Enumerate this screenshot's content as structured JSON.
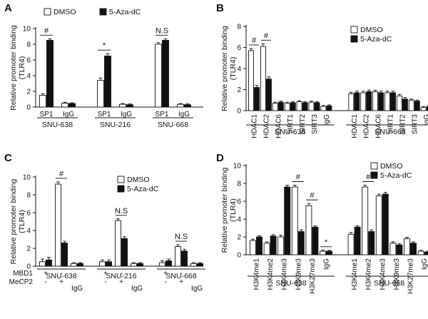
{
  "colors": {
    "dmso": "#ffffff",
    "aza": "#111111",
    "axis": "#111111"
  },
  "chart_data": [
    {
      "panel": "A",
      "type": "bar",
      "ylabel": "Relative promoter binding (TLR4)",
      "ylim": [
        0,
        10
      ],
      "yticks": [
        0,
        2,
        4,
        6,
        8,
        10
      ],
      "legend": [
        "DMSO",
        "5-Aza-dC"
      ],
      "categories": [
        "SP1",
        "IgG",
        "SP1",
        "IgG",
        "SP1",
        "IgG"
      ],
      "groups": [
        {
          "label": "SNU-638",
          "span": [
            0,
            1
          ]
        },
        {
          "label": "SNU-216",
          "span": [
            2,
            3
          ]
        },
        {
          "label": "SNU-668",
          "span": [
            4,
            5
          ]
        }
      ],
      "series": [
        {
          "name": "DMSO",
          "values": [
            1.5,
            0.5,
            3.4,
            0.35,
            8.0,
            0.35
          ]
        },
        {
          "name": "5-Aza-dC",
          "values": [
            8.5,
            0.45,
            6.5,
            0.3,
            8.5,
            0.3
          ]
        }
      ],
      "errors": [
        [
          0.2,
          0.1,
          0.3,
          0.1,
          0.2,
          0.1
        ],
        [
          0.2,
          0.1,
          0.3,
          0.1,
          0.2,
          0.1
        ]
      ],
      "annotations": [
        {
          "text": "#",
          "span": [
            0,
            0
          ]
        },
        {
          "text": "*",
          "span": [
            2,
            2
          ]
        },
        {
          "text": "N.S",
          "span": [
            4,
            4
          ]
        }
      ]
    },
    {
      "panel": "B",
      "type": "bar",
      "ylabel": "Relative promoter binding (TLR4)",
      "ylim": [
        0,
        8
      ],
      "yticks": [
        0,
        2,
        4,
        6,
        8
      ],
      "legend": [
        "DMSO",
        "5-Aza-dC"
      ],
      "categories": [
        "HDAC1",
        "HDAC2",
        "HDAC6",
        "SIRT1",
        "SIRT2",
        "SIRT3",
        "IgG",
        "HDAC1",
        "HDAC2",
        "HDAC6",
        "SIRT1",
        "SIRT2",
        "SIRT3",
        "IgG"
      ],
      "groups": [
        {
          "label": "SNU-638",
          "span": [
            0,
            6
          ]
        },
        {
          "label": "SNU-668",
          "span": [
            7,
            13
          ]
        }
      ],
      "series": [
        {
          "name": "DMSO",
          "values": [
            5.7,
            6.1,
            0.7,
            0.7,
            0.85,
            0.8,
            0.4,
            1.6,
            1.7,
            1.8,
            1.7,
            1.4,
            1.0,
            0.3
          ]
        },
        {
          "name": "5-Aza-dC",
          "values": [
            2.2,
            3.0,
            0.8,
            0.75,
            0.75,
            0.75,
            0.45,
            1.7,
            1.8,
            1.7,
            1.7,
            1.1,
            0.9,
            0.4
          ]
        }
      ],
      "errors": [
        [
          0.2,
          0.25,
          0.1,
          0.1,
          0.1,
          0.1,
          0.1,
          0.15,
          0.15,
          0.15,
          0.15,
          0.15,
          0.1,
          0.1
        ],
        [
          0.2,
          0.2,
          0.1,
          0.1,
          0.1,
          0.1,
          0.1,
          0.15,
          0.15,
          0.15,
          0.15,
          0.15,
          0.1,
          0.1
        ]
      ],
      "annotations": [
        {
          "text": "#",
          "span": [
            0,
            0
          ]
        },
        {
          "text": "#",
          "span": [
            1,
            1
          ]
        }
      ]
    },
    {
      "panel": "C",
      "type": "bar",
      "ylabel": "Relative promoter binding (TLR4)",
      "ylim": [
        0,
        10
      ],
      "yticks": [
        0,
        2,
        4,
        6,
        8,
        10
      ],
      "legend": [
        "DMSO",
        "5-Aza-dC"
      ],
      "row_labels": [
        "MBD1",
        "MeCP2"
      ],
      "signs": [
        [
          "+",
          "-"
        ],
        [
          "-",
          "+"
        ],
        [
          "+",
          "-"
        ],
        [
          "-",
          "+"
        ],
        [
          "+",
          "-"
        ],
        [
          "-",
          "+"
        ]
      ],
      "categories": [
        "",
        "",
        "IgG",
        "",
        "",
        "IgG",
        "",
        "",
        "IgG"
      ],
      "groups": [
        {
          "label": "SNU-638",
          "span": [
            0,
            2
          ]
        },
        {
          "label": "SNU-216",
          "span": [
            3,
            5
          ]
        },
        {
          "label": "SNU-668",
          "span": [
            6,
            8
          ]
        }
      ],
      "series": [
        {
          "name": "DMSO",
          "values": [
            0.5,
            9.2,
            0.3,
            0.5,
            5.1,
            0.3,
            0.4,
            2.2,
            0.3
          ]
        },
        {
          "name": "5-Aza-dC",
          "values": [
            0.7,
            2.6,
            0.3,
            0.5,
            3.1,
            0.3,
            0.6,
            1.7,
            0.3
          ]
        }
      ],
      "errors": [
        [
          0.3,
          0.25,
          0.1,
          0.2,
          0.2,
          0.1,
          0.2,
          0.2,
          0.1
        ],
        [
          0.3,
          0.2,
          0.1,
          0.2,
          0.2,
          0.1,
          0.2,
          0.2,
          0.1
        ]
      ],
      "annotations": [
        {
          "text": "#",
          "span": [
            1,
            1
          ]
        },
        {
          "text": "N.S",
          "span": [
            4,
            4
          ]
        },
        {
          "text": "N.S",
          "span": [
            7,
            7
          ]
        }
      ]
    },
    {
      "panel": "D",
      "type": "bar",
      "ylabel": "Relative promoter binding (TLR4)",
      "ylim": [
        0,
        10
      ],
      "yticks": [
        0,
        2,
        4,
        6,
        8,
        10
      ],
      "legend": [
        "DMSO",
        "5-Aza-dC"
      ],
      "categories": [
        "H3K4me1",
        "H3K4me2",
        "H3K4me3",
        "H3K9me3",
        "H3K27me3",
        "IgG",
        "H3K4me1",
        "H3K4me2",
        "H3K4me3",
        "H3K9me3",
        "H3K27me3",
        "IgG"
      ],
      "groups": [
        {
          "label": "SNU-638",
          "span": [
            0,
            5
          ]
        },
        {
          "label": "SNU-668",
          "span": [
            6,
            11
          ]
        }
      ],
      "series": [
        {
          "name": "DMSO",
          "values": [
            1.6,
            1.3,
            2.0,
            7.6,
            5.5,
            0.4,
            2.3,
            7.6,
            6.6,
            1.3,
            1.8,
            0.4
          ]
        },
        {
          "name": "5-Aza-dC",
          "values": [
            2.0,
            2.1,
            7.6,
            2.6,
            3.1,
            0.4,
            3.1,
            2.6,
            6.8,
            1.1,
            1.3,
            0.3
          ]
        }
      ],
      "errors": [
        [
          0.15,
          0.15,
          0.2,
          0.2,
          0.25,
          0.1,
          0.2,
          0.2,
          0.2,
          0.15,
          0.15,
          0.1
        ],
        [
          0.15,
          0.15,
          0.2,
          0.2,
          0.15,
          0.1,
          0.15,
          0.2,
          0.2,
          0.15,
          0.15,
          0.1
        ]
      ],
      "annotations": [
        {
          "text": "#",
          "span": [
            3,
            3
          ]
        },
        {
          "text": "#",
          "span": [
            4,
            4
          ]
        },
        {
          "text": "*",
          "span": [
            5,
            5
          ]
        },
        {
          "text": "#",
          "span": [
            7,
            7
          ]
        }
      ]
    }
  ]
}
